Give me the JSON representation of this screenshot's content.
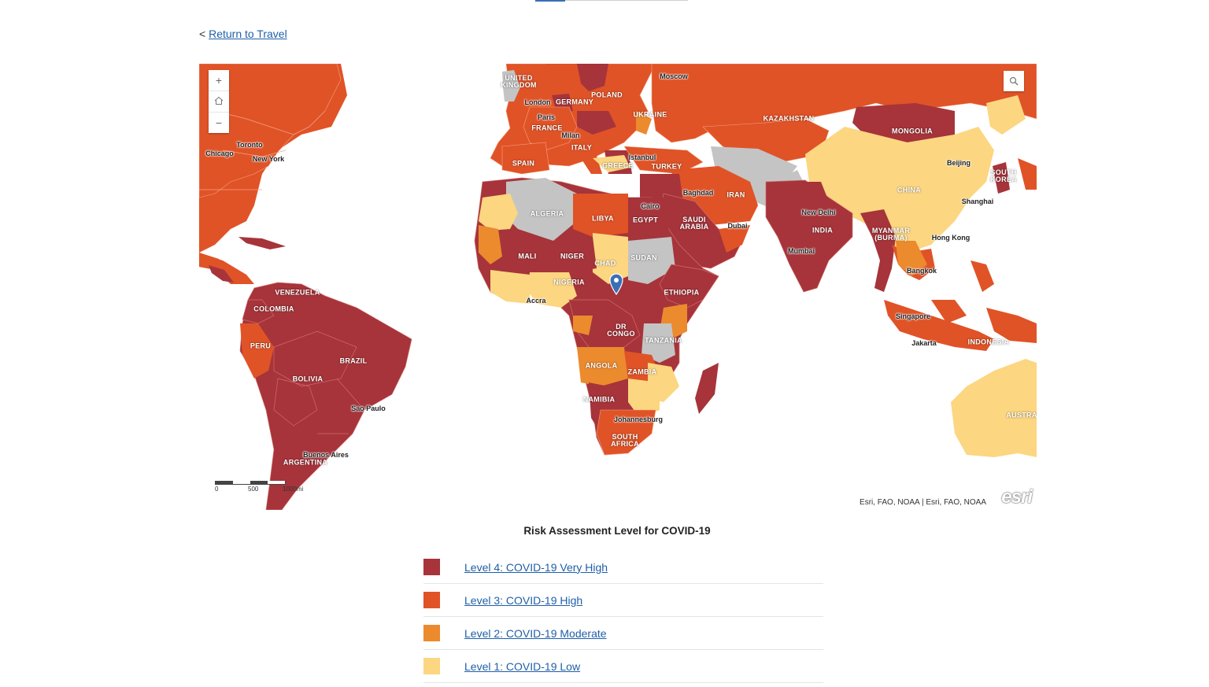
{
  "nav": {
    "back_prefix": "<",
    "back_label": "Return to Travel"
  },
  "map": {
    "attribution": "Esri, FAO, NOAA | Esri, FAO, NOAA",
    "powered_by": "esri",
    "zoom_in": "+",
    "zoom_out": "−",
    "home_icon": "home-icon",
    "search_icon": "search-icon",
    "scale": {
      "labels": [
        "0",
        "500",
        "1000mi"
      ]
    },
    "colors": {
      "level4": "#a6343a",
      "level3": "#e05327",
      "level2": "#ec8a2e",
      "level1": "#fcd680",
      "nodata": "#c4c4c4",
      "ocean": "#ffffff"
    },
    "countries": [
      {
        "name": "UNITED KINGDOM",
        "level": "nodata"
      },
      {
        "name": "GERMANY",
        "level": "level3"
      },
      {
        "name": "POLAND",
        "level": "level3"
      },
      {
        "name": "UKRAINE",
        "level": "level3"
      },
      {
        "name": "FRANCE",
        "level": "level3"
      },
      {
        "name": "ITALY",
        "level": "level3"
      },
      {
        "name": "SPAIN",
        "level": "level3"
      },
      {
        "name": "GREECE",
        "level": "level3"
      },
      {
        "name": "TURKEY",
        "level": "level3"
      },
      {
        "name": "KAZAKHSTAN",
        "level": "level3"
      },
      {
        "name": "MONGOLIA",
        "level": "level4"
      },
      {
        "name": "CHINA",
        "level": "level1"
      },
      {
        "name": "SOUTH KOREA",
        "level": "level4"
      },
      {
        "name": "IRAN",
        "level": "level3"
      },
      {
        "name": "INDIA",
        "level": "level4"
      },
      {
        "name": "MYANMAR (BURMA)",
        "level": "level4"
      },
      {
        "name": "SAUDI ARABIA",
        "level": "level4"
      },
      {
        "name": "EGYPT",
        "level": "level4"
      },
      {
        "name": "LIBYA",
        "level": "level3"
      },
      {
        "name": "ALGERIA",
        "level": "nodata"
      },
      {
        "name": "MALI",
        "level": "level4"
      },
      {
        "name": "NIGER",
        "level": "level4"
      },
      {
        "name": "CHAD",
        "level": "level1"
      },
      {
        "name": "SUDAN",
        "level": "nodata"
      },
      {
        "name": "NIGERIA",
        "level": "level1"
      },
      {
        "name": "ETHIOPIA",
        "level": "level4"
      },
      {
        "name": "DR CONGO",
        "level": "level4"
      },
      {
        "name": "TANZANIA",
        "level": "nodata"
      },
      {
        "name": "ANGOLA",
        "level": "level2"
      },
      {
        "name": "ZAMBIA",
        "level": "level3"
      },
      {
        "name": "NAMIBIA",
        "level": "level4"
      },
      {
        "name": "SOUTH AFRICA",
        "level": "level3"
      },
      {
        "name": "VENEZUELA",
        "level": "level4"
      },
      {
        "name": "COLOMBIA",
        "level": "level4"
      },
      {
        "name": "PERU",
        "level": "level3"
      },
      {
        "name": "BRAZIL",
        "level": "level4"
      },
      {
        "name": "BOLIVIA",
        "level": "level4"
      },
      {
        "name": "ARGENTINA",
        "level": "level4"
      },
      {
        "name": "INDONESIA",
        "level": "level3"
      },
      {
        "name": "AUSTRALIA",
        "level": "level1"
      }
    ],
    "cities": [
      "Moscow",
      "London",
      "Paris",
      "Milan",
      "Istanbul",
      "Toronto",
      "Chicago",
      "New York",
      "Baghdad",
      "Cairo",
      "Dubai",
      "New Delhi",
      "Mumbai",
      "Bangkok",
      "Beijing",
      "Shanghai",
      "Hong Kong",
      "Singapore",
      "Jakarta",
      "Accra",
      "Johannesburg",
      "Sao Paulo",
      "Buenos Aires"
    ]
  },
  "legend": {
    "title": "Risk Assessment Level for COVID-19",
    "items": [
      {
        "label": "Level 4: COVID-19 Very High",
        "color": "#a6343a"
      },
      {
        "label": "Level 3: COVID-19 High",
        "color": "#e05327"
      },
      {
        "label": "Level 2: COVID-19 Moderate",
        "color": "#ec8a2e"
      },
      {
        "label": "Level 1: COVID-19 Low",
        "color": "#fcd680"
      }
    ]
  }
}
